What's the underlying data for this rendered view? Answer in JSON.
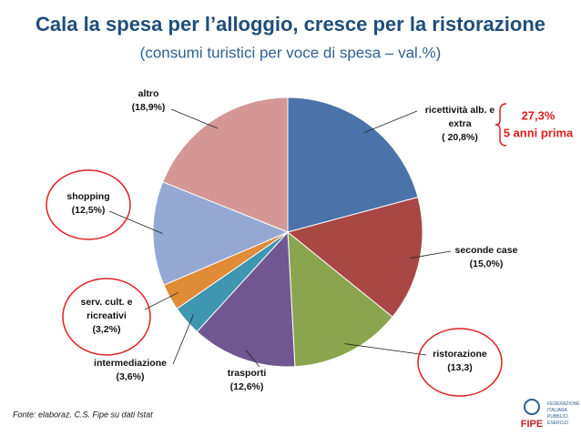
{
  "chart_data": {
    "type": "pie",
    "title": "Cala la spesa per l’alloggio, cresce per la ristorazione",
    "subtitle": "(consumi turistici per voce di spesa – val.%)",
    "categories": [
      "ricettività alb. e extra",
      "seconde case",
      "ristorazione",
      "trasporti",
      "intermediazione",
      "serv. cult. e ricreativi",
      "shopping",
      "altro"
    ],
    "values": [
      20.8,
      15.0,
      13.3,
      12.6,
      3.6,
      3.2,
      12.5,
      18.9
    ],
    "value_labels": [
      "( 20,8%)",
      "(15,0%)",
      "(13,3)",
      "(12,6%)",
      "(3,6%)",
      "(3,2%)",
      "(12,5%)",
      "(18,9%)"
    ],
    "colors": [
      "#4a73a9",
      "#a94744",
      "#8ba54f",
      "#705792",
      "#3e96b1",
      "#e08b36",
      "#94a8d3",
      "#d49795"
    ],
    "annotations": [
      "27,3%",
      "5 anni prima"
    ],
    "source": "Fonte: elaboraz. C.S. Fipe su dati Istat",
    "logo": {
      "name": "FIPE",
      "text": [
        "FEDERAZIONE",
        "ITALIANA",
        "PUBBLICI",
        "ESERCIZI"
      ]
    }
  }
}
